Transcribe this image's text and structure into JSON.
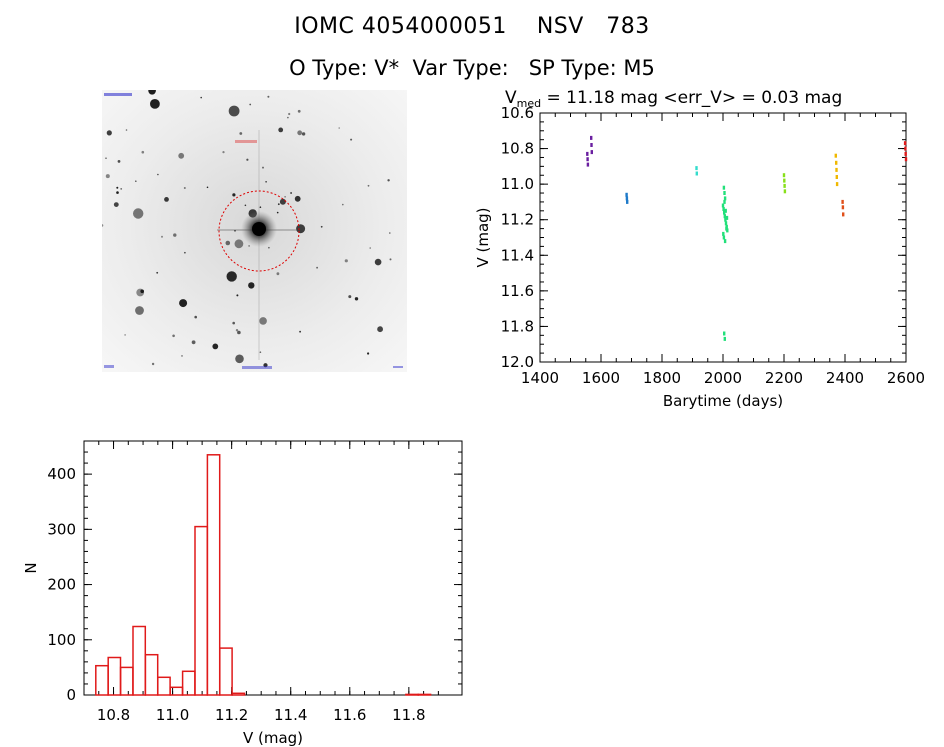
{
  "header": {
    "object_id": "IOMC 4054000051",
    "catalog_name": "NSV",
    "catalog_number": "783",
    "otype_label": "O Type: V*",
    "vartype_label": "Var Type:",
    "sptype_label": "SP Type: M5"
  },
  "sky_image": {
    "field_label": "",
    "stars": "background-star-field",
    "target_circle_color": "#dd0000"
  },
  "chart_data": [
    {
      "type": "scatter",
      "title_prefix": "V",
      "title_subscript": "med",
      "title_rest": " = 11.18 mag <err_V> = 0.03 mag",
      "xlabel": "Barytime (days)",
      "ylabel": "V (mag)",
      "xlim": [
        1400,
        2600
      ],
      "ylim": [
        12.0,
        10.6
      ],
      "y_inverted": true,
      "x_ticks": [
        1400,
        1600,
        1800,
        2000,
        2200,
        2400,
        2600
      ],
      "x_tick_labels": [
        "1400",
        "1600",
        "1800",
        "2000",
        "2200",
        "2400",
        "2600"
      ],
      "y_ticks": [
        10.6,
        10.8,
        11.0,
        11.2,
        11.4,
        11.6,
        11.8,
        12.0
      ],
      "y_tick_labels": [
        "10.6",
        "10.8",
        "11.0",
        "11.2",
        "11.4",
        "11.6",
        "11.8",
        "12.0"
      ],
      "series": [
        {
          "color": "#6a1fa0",
          "x": [
            1555,
            1556,
            1557,
            1568,
            1569,
            1570
          ],
          "y": [
            10.83,
            10.86,
            10.89,
            10.74,
            10.78,
            10.82
          ]
        },
        {
          "color": "#1f7ac9",
          "x": [
            1684,
            1685,
            1686
          ],
          "y": [
            11.06,
            11.08,
            11.1
          ]
        },
        {
          "color": "#33dccc",
          "x": [
            1913,
            1914
          ],
          "y": [
            10.91,
            10.94
          ]
        },
        {
          "color": "#22e07a",
          "x": [
            2000,
            2002,
            2004,
            2006,
            2008,
            2010,
            2012,
            2014,
            2001,
            2003,
            2005,
            2007,
            2009,
            2011,
            2013,
            2003,
            2005,
            2007,
            2004,
            2006
          ],
          "y": [
            11.12,
            11.14,
            11.16,
            11.18,
            11.2,
            11.22,
            11.24,
            11.26,
            11.28,
            11.3,
            11.1,
            11.08,
            11.15,
            11.25,
            11.19,
            11.02,
            11.05,
            11.32,
            11.84,
            11.87
          ]
        },
        {
          "color": "#88e01a",
          "x": [
            2200,
            2201,
            2202,
            2203
          ],
          "y": [
            10.95,
            10.98,
            11.01,
            11.04
          ]
        },
        {
          "color": "#f0b800",
          "x": [
            2370,
            2371,
            2372,
            2373,
            2374
          ],
          "y": [
            10.84,
            10.88,
            10.92,
            10.96,
            11.0
          ]
        },
        {
          "color": "#e0501a",
          "x": [
            2392,
            2393,
            2394
          ],
          "y": [
            11.1,
            11.13,
            11.17
          ]
        },
        {
          "color": "#e01a1a",
          "x": [
            2597,
            2598,
            2599,
            2600
          ],
          "y": [
            10.77,
            10.8,
            10.83,
            10.86
          ]
        }
      ]
    },
    {
      "type": "bar",
      "subtype": "histogram",
      "xlabel": "V (mag)",
      "ylabel": "N",
      "xlim": [
        10.7,
        11.98
      ],
      "ylim": [
        0,
        460
      ],
      "x_ticks": [
        10.8,
        11.0,
        11.2,
        11.4,
        11.6,
        11.8
      ],
      "x_tick_labels": [
        "10.8",
        "11.0",
        "11.2",
        "11.4",
        "11.6",
        "11.8"
      ],
      "y_ticks": [
        0,
        100,
        200,
        300,
        400
      ],
      "y_tick_labels": [
        "0",
        "100",
        "200",
        "300",
        "400"
      ],
      "bin_width": 0.0418,
      "bin_starts": [
        10.74,
        10.782,
        10.824,
        10.866,
        10.908,
        10.95,
        10.992,
        11.034,
        11.076,
        11.118,
        11.16,
        11.202,
        11.244,
        11.286,
        11.328,
        11.37,
        11.412,
        11.454,
        11.496,
        11.538,
        11.58,
        11.622,
        11.664,
        11.706,
        11.748,
        11.79,
        11.832
      ],
      "values": [
        53,
        68,
        50,
        124,
        73,
        32,
        14,
        43,
        305,
        435,
        85,
        3,
        0,
        0,
        0,
        0,
        0,
        0,
        0,
        0,
        0,
        0,
        0,
        0,
        0,
        1,
        1
      ],
      "color": "#e01a1a"
    }
  ]
}
